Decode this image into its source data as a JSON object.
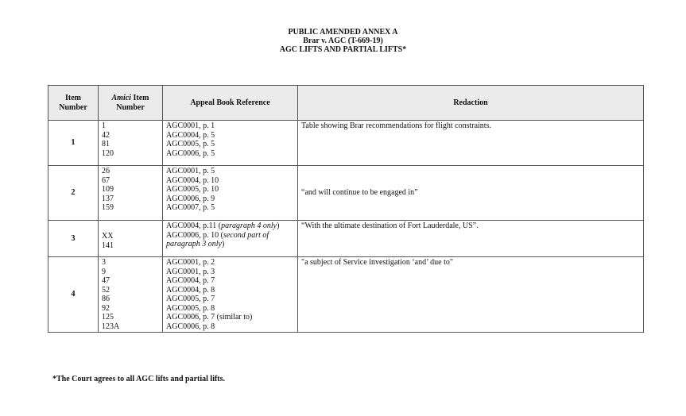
{
  "title_lines": [
    "PUBLIC AMENDED ANNEX A",
    "Brar v. AGC (T-669-19)",
    "AGC LIFTS AND PARTIAL LIFTS*"
  ],
  "headers": {
    "item": "Item Number",
    "amici_italic": "Amici",
    "amici_rest": " Item Number",
    "appeal": "Appeal Book Reference",
    "redaction": "Redaction"
  },
  "rows": [
    {
      "item": "1",
      "amici": [
        "1",
        "42",
        "81",
        "120"
      ],
      "appeal": [
        [
          {
            "t": "AGC0001, p. 1"
          }
        ],
        [
          {
            "t": "AGC0004, p. 5"
          }
        ],
        [
          {
            "t": "AGC0005, p. 5"
          }
        ],
        [
          {
            "t": "AGC0006, p. 5"
          }
        ]
      ],
      "redaction": "Table showing Brar recommendations for flight constraints."
    },
    {
      "item": "2",
      "amici": [
        "26",
        "67",
        "109",
        "137",
        "159"
      ],
      "appeal": [
        [
          {
            "t": "AGC0001, p. 5"
          }
        ],
        [
          {
            "t": "AGC0004, p. 10"
          }
        ],
        [
          {
            "t": "AGC0005, p. 10"
          }
        ],
        [
          {
            "t": "AGC0006, p. 9"
          }
        ],
        [
          {
            "t": "AGC0007, p. 5"
          }
        ]
      ],
      "redaction": "“and will continue to be engaged in”"
    },
    {
      "item": "3",
      "amici": [
        "XX",
        "141"
      ],
      "appeal": [
        [
          {
            "t": "AGC0004, p.11 ("
          },
          {
            "t": "paragraph 4 only",
            "i": true
          },
          {
            "t": ")"
          }
        ],
        [
          {
            "t": "AGC0006, p. 10 ("
          },
          {
            "t": "second part of",
            "i": true
          }
        ],
        [
          {
            "t": "paragraph 3 only",
            "i": true
          },
          {
            "t": ")"
          }
        ]
      ],
      "redaction": "“With the ultimate destination of Fort Lauderdale, US”."
    },
    {
      "item": "4",
      "amici": [
        "3",
        "9",
        "47",
        "52",
        "86",
        "92",
        "125",
        "123A"
      ],
      "appeal": [
        [
          {
            "t": "AGC0001, p. 2"
          }
        ],
        [
          {
            "t": " AGC0001, p. 3"
          }
        ],
        [
          {
            "t": "AGC0004, p. 7"
          }
        ],
        [
          {
            "t": "AGC0004, p. 8"
          }
        ],
        [
          {
            "t": "AGC0005, p. 7"
          }
        ],
        [
          {
            "t": "AGC0005, p. 8"
          }
        ],
        [
          {
            "t": "AGC0006, p. 7 (similar to)"
          }
        ],
        [
          {
            "t": "AGC0006, p. 8"
          }
        ]
      ],
      "redaction": "\"a subject of Service investigation ‘and’ due to\""
    }
  ],
  "footnote": "*The Court agrees to all AGC lifts and partial lifts."
}
